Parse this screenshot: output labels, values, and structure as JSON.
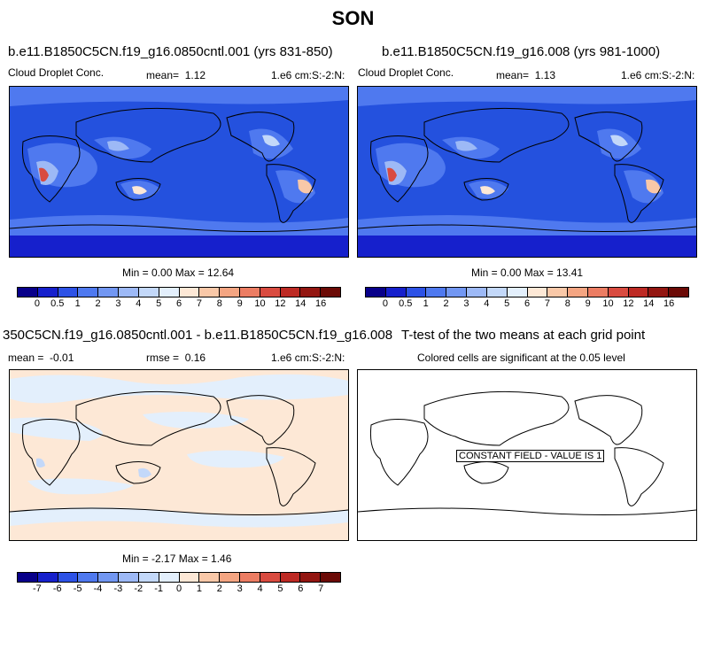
{
  "title": "SON",
  "chart_data": [
    {
      "type": "heatmap",
      "title": "b.e11.B1850C5CN.f19_g16.0850cntl.001 (yrs 831-850)",
      "variable": "Cloud Droplet Conc.",
      "mean_label": "mean=",
      "mean": "1.12",
      "units": "1.e6 cm:S:-2:N:",
      "min_max_text": "Min =  0.00 Max =  12.64",
      "min": 0.0,
      "max": 12.64,
      "colorbar": {
        "ticks": [
          "0",
          "0.5",
          "1",
          "2",
          "3",
          "4",
          "5",
          "6",
          "7",
          "8",
          "9",
          "10",
          "12",
          "14",
          "16"
        ],
        "colors": [
          "#08008a",
          "#1620cc",
          "#2d52e6",
          "#4f79ef",
          "#7297f2",
          "#9db9f6",
          "#c3d8f9",
          "#e3effc",
          "#fde8d6",
          "#f9c8a8",
          "#f4a582",
          "#ec7d63",
          "#d94b40",
          "#bd2a24",
          "#931611",
          "#6b0a06"
        ]
      }
    },
    {
      "type": "heatmap",
      "title": "b.e11.B1850C5CN.f19_g16.008 (yrs 981-1000)",
      "variable": "Cloud Droplet Conc.",
      "mean_label": "mean=",
      "mean": "1.13",
      "units": "1.e6 cm:S:-2:N:",
      "min_max_text": "Min =  0.00 Max =  13.41",
      "min": 0.0,
      "max": 13.41,
      "colorbar": {
        "ticks": [
          "0",
          "0.5",
          "1",
          "2",
          "3",
          "4",
          "5",
          "6",
          "7",
          "8",
          "9",
          "10",
          "12",
          "14",
          "16"
        ],
        "colors": [
          "#08008a",
          "#1620cc",
          "#2d52e6",
          "#4f79ef",
          "#7297f2",
          "#9db9f6",
          "#c3d8f9",
          "#e3effc",
          "#fde8d6",
          "#f9c8a8",
          "#f4a582",
          "#ec7d63",
          "#d94b40",
          "#bd2a24",
          "#931611",
          "#6b0a06"
        ]
      }
    },
    {
      "type": "heatmap",
      "title": "350C5CN.f19_g16.0850cntl.001 - b.e11.B1850C5CN.f19_g16.008",
      "mean_label": "mean =",
      "mean": "-0.01",
      "rmse_label": "rmse =",
      "rmse": "0.16",
      "units": "1.e6 cm:S:-2:N:",
      "min_max_text": "Min = -2.17 Max =  1.46",
      "min": -2.17,
      "max": 1.46,
      "colorbar": {
        "ticks": [
          "-7",
          "-6",
          "-5",
          "-4",
          "-3",
          "-2",
          "-1",
          "0",
          "1",
          "2",
          "3",
          "4",
          "5",
          "6",
          "7"
        ],
        "colors": [
          "#08008a",
          "#1620cc",
          "#2d52e6",
          "#4f79ef",
          "#7297f2",
          "#9db9f6",
          "#c3d8f9",
          "#e3effc",
          "#fde8d6",
          "#f9c8a8",
          "#f4a582",
          "#ec7d63",
          "#d94b40",
          "#bd2a24",
          "#931611",
          "#6b0a06"
        ]
      }
    },
    {
      "type": "heatmap",
      "title": "T-test of the two means at each grid point",
      "subtitle": "Colored cells are significant at the 0.05 level",
      "annotation": "CONSTANT FIELD - VALUE IS 1"
    }
  ],
  "colors": {
    "map_background_blue": "#2451de",
    "map_mid_blue": "#4f79ef",
    "map_light_blue": "#9db9f6",
    "diff_background": "#fde8d6",
    "diff_light_blue": "#e3effc",
    "continent_outline": "#000000"
  }
}
